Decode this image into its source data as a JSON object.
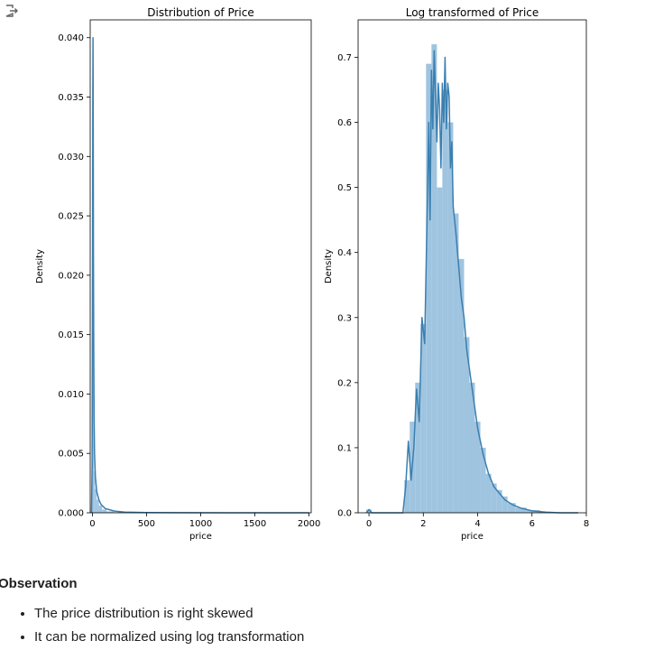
{
  "output_icon": "output-arrow-icon",
  "colors": {
    "hist": "#9fc4e0",
    "kde": "#3a7fb0",
    "axis": "#000000"
  },
  "chart_data": [
    {
      "type": "histogram+kde",
      "title": "Distribution of Price",
      "xlabel": "price",
      "ylabel": "Density",
      "xlim": [
        -20,
        2020
      ],
      "ylim": [
        0,
        0.0415
      ],
      "xticks": [
        0,
        500,
        1000,
        1500,
        2000
      ],
      "yticks": [
        0.0,
        0.005,
        0.01,
        0.015,
        0.02,
        0.025,
        0.03,
        0.035,
        0.04
      ],
      "ytick_decimals": 3,
      "hist_bins": [
        {
          "x0": -5,
          "x1": 5,
          "density": 0.0045
        },
        {
          "x0": 5,
          "x1": 15,
          "density": 0.021
        },
        {
          "x0": 15,
          "x1": 25,
          "density": 0.0035
        },
        {
          "x0": 25,
          "x1": 40,
          "density": 0.002
        },
        {
          "x0": 40,
          "x1": 60,
          "density": 0.0011
        },
        {
          "x0": 60,
          "x1": 90,
          "density": 0.0006
        },
        {
          "x0": 90,
          "x1": 130,
          "density": 0.00028
        },
        {
          "x0": 130,
          "x1": 200,
          "density": 0.00012
        },
        {
          "x0": 200,
          "x1": 300,
          "density": 5e-05
        },
        {
          "x0": 300,
          "x1": 500,
          "density": 2e-05
        }
      ],
      "kde": [
        [
          -8,
          0.0
        ],
        [
          -2,
          0.004
        ],
        [
          2,
          0.022
        ],
        [
          4,
          0.035
        ],
        [
          6,
          0.04
        ],
        [
          8,
          0.032
        ],
        [
          10,
          0.021
        ],
        [
          13,
          0.013
        ],
        [
          16,
          0.008
        ],
        [
          20,
          0.005
        ],
        [
          28,
          0.003
        ],
        [
          40,
          0.0018
        ],
        [
          60,
          0.0011
        ],
        [
          80,
          0.0007
        ],
        [
          120,
          0.00035
        ],
        [
          200,
          0.00015
        ],
        [
          300,
          6e-05
        ],
        [
          500,
          2e-05
        ],
        [
          800,
          5e-06
        ],
        [
          1200,
          0.0
        ],
        [
          2000,
          0.0
        ]
      ]
    },
    {
      "type": "histogram+kde",
      "title": "Log transformed of Price",
      "xlabel": "price",
      "ylabel": "Density",
      "xlim": [
        -0.4,
        8.0
      ],
      "ylim": [
        0,
        0.7575
      ],
      "xticks": [
        0,
        2,
        4,
        6,
        8
      ],
      "yticks": [
        0.0,
        0.1,
        0.2,
        0.3,
        0.4,
        0.5,
        0.6,
        0.7
      ],
      "ytick_decimals": 1,
      "hist_bins": [
        {
          "x0": -0.1,
          "x1": 0.1,
          "density": 0.005
        },
        {
          "x0": 1.3,
          "x1": 1.5,
          "density": 0.05
        },
        {
          "x0": 1.5,
          "x1": 1.7,
          "density": 0.14
        },
        {
          "x0": 1.7,
          "x1": 1.9,
          "density": 0.2
        },
        {
          "x0": 1.9,
          "x1": 2.1,
          "density": 0.29
        },
        {
          "x0": 2.1,
          "x1": 2.3,
          "density": 0.69
        },
        {
          "x0": 2.3,
          "x1": 2.5,
          "density": 0.72
        },
        {
          "x0": 2.5,
          "x1": 2.7,
          "density": 0.5
        },
        {
          "x0": 2.7,
          "x1": 2.9,
          "density": 0.65
        },
        {
          "x0": 2.9,
          "x1": 3.1,
          "density": 0.6
        },
        {
          "x0": 3.1,
          "x1": 3.3,
          "density": 0.46
        },
        {
          "x0": 3.3,
          "x1": 3.5,
          "density": 0.39
        },
        {
          "x0": 3.5,
          "x1": 3.7,
          "density": 0.27
        },
        {
          "x0": 3.7,
          "x1": 3.9,
          "density": 0.2
        },
        {
          "x0": 3.9,
          "x1": 4.1,
          "density": 0.14
        },
        {
          "x0": 4.1,
          "x1": 4.3,
          "density": 0.1
        },
        {
          "x0": 4.3,
          "x1": 4.5,
          "density": 0.06
        },
        {
          "x0": 4.5,
          "x1": 4.7,
          "density": 0.045
        },
        {
          "x0": 4.7,
          "x1": 4.9,
          "density": 0.035
        },
        {
          "x0": 4.9,
          "x1": 5.1,
          "density": 0.025
        },
        {
          "x0": 5.1,
          "x1": 5.4,
          "density": 0.015
        },
        {
          "x0": 5.4,
          "x1": 5.8,
          "density": 0.008
        },
        {
          "x0": 5.8,
          "x1": 6.3,
          "density": 0.004
        },
        {
          "x0": 6.3,
          "x1": 7.0,
          "density": 0.001
        }
      ],
      "kde": [
        [
          -0.1,
          0.0
        ],
        [
          0.0,
          0.005
        ],
        [
          0.1,
          0.0
        ],
        [
          1.25,
          0.0
        ],
        [
          1.35,
          0.04
        ],
        [
          1.45,
          0.11
        ],
        [
          1.55,
          0.05
        ],
        [
          1.65,
          0.1
        ],
        [
          1.75,
          0.19
        ],
        [
          1.85,
          0.14
        ],
        [
          1.95,
          0.3
        ],
        [
          2.05,
          0.26
        ],
        [
          2.15,
          0.48
        ],
        [
          2.2,
          0.6
        ],
        [
          2.25,
          0.45
        ],
        [
          2.3,
          0.68
        ],
        [
          2.35,
          0.59
        ],
        [
          2.4,
          0.71
        ],
        [
          2.45,
          0.64
        ],
        [
          2.5,
          0.57
        ],
        [
          2.55,
          0.66
        ],
        [
          2.6,
          0.62
        ],
        [
          2.65,
          0.53
        ],
        [
          2.7,
          0.66
        ],
        [
          2.75,
          0.6
        ],
        [
          2.8,
          0.7
        ],
        [
          2.85,
          0.59
        ],
        [
          2.9,
          0.66
        ],
        [
          2.95,
          0.64
        ],
        [
          3.0,
          0.53
        ],
        [
          3.05,
          0.57
        ],
        [
          3.1,
          0.47
        ],
        [
          3.2,
          0.43
        ],
        [
          3.3,
          0.38
        ],
        [
          3.4,
          0.33
        ],
        [
          3.5,
          0.3
        ],
        [
          3.6,
          0.25
        ],
        [
          3.8,
          0.19
        ],
        [
          4.0,
          0.13
        ],
        [
          4.2,
          0.09
        ],
        [
          4.4,
          0.06
        ],
        [
          4.6,
          0.04
        ],
        [
          4.8,
          0.03
        ],
        [
          5.0,
          0.02
        ],
        [
          5.3,
          0.012
        ],
        [
          5.6,
          0.007
        ],
        [
          6.0,
          0.003
        ],
        [
          6.5,
          0.001
        ],
        [
          7.0,
          0.0
        ],
        [
          7.7,
          0.0
        ]
      ]
    }
  ],
  "observation": {
    "title": "Observation",
    "items": [
      "The price distribution is right skewed",
      "It can be normalized using log transformation"
    ]
  }
}
